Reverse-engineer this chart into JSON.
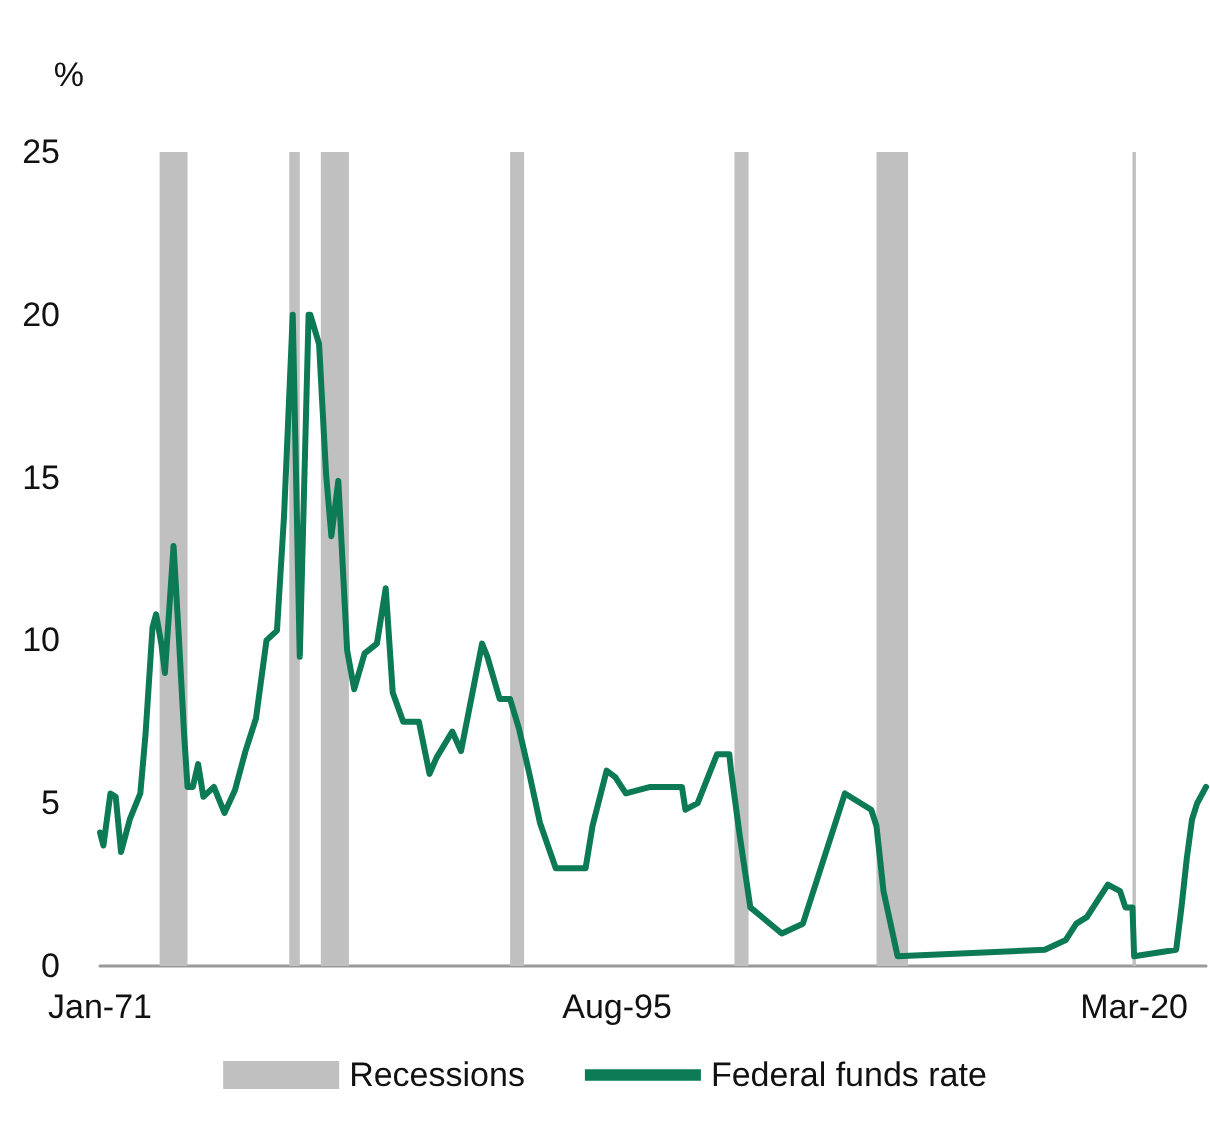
{
  "chart_data": {
    "type": "line",
    "ylabel": "%",
    "x": [
      "1971-01",
      "1971-03",
      "1971-07",
      "1971-10",
      "1972-01",
      "1972-06",
      "1972-12",
      "1973-03",
      "1973-07",
      "1973-09",
      "1973-12",
      "1974-02",
      "1974-05",
      "1974-07",
      "1974-10",
      "1975-01",
      "1975-03",
      "1975-06",
      "1975-09",
      "1975-12",
      "1976-06",
      "1976-12",
      "1977-06",
      "1977-12",
      "1978-06",
      "1978-12",
      "1979-06",
      "1979-10",
      "1980-03",
      "1980-07",
      "1980-12",
      "1981-01",
      "1981-06",
      "1981-10",
      "1982-01",
      "1982-05",
      "1982-10",
      "1983-02",
      "1983-08",
      "1984-03",
      "1984-08",
      "1984-12",
      "1985-06",
      "1986-03",
      "1986-09",
      "1987-01",
      "1987-10",
      "1988-03",
      "1989-03",
      "1989-06",
      "1990-01",
      "1990-07",
      "1990-12",
      "1991-06",
      "1991-12",
      "1992-09",
      "1994-02",
      "1994-06",
      "1995-02",
      "1995-07",
      "1996-01",
      "1997-03",
      "1998-09",
      "1998-11",
      "1999-06",
      "2000-05",
      "2000-12",
      "2001-01",
      "2001-06",
      "2001-12",
      "2003-06",
      "2004-06",
      "2006-06",
      "2007-09",
      "2007-12",
      "2008-04",
      "2008-12",
      "2015-12",
      "2016-12",
      "2017-06",
      "2017-12",
      "2018-06",
      "2018-12",
      "2019-07",
      "2019-10",
      "2020-02",
      "2020-03",
      "2022-03",
      "2022-06",
      "2022-09",
      "2022-12",
      "2023-03",
      "2023-08"
    ],
    "series": [
      {
        "name": "Federal funds rate",
        "color": "#0b7a55",
        "values": [
          4.1,
          3.7,
          5.3,
          5.2,
          3.5,
          4.5,
          5.3,
          7.1,
          10.4,
          10.8,
          9.9,
          9.0,
          11.3,
          12.9,
          10.1,
          7.1,
          5.5,
          5.5,
          6.2,
          5.2,
          5.5,
          4.7,
          5.4,
          6.6,
          7.6,
          10.0,
          10.3,
          13.8,
          20.0,
          9.5,
          20.0,
          20.0,
          19.1,
          15.1,
          13.2,
          14.9,
          9.7,
          8.5,
          9.6,
          9.9,
          11.6,
          8.4,
          7.5,
          7.5,
          5.9,
          6.4,
          7.2,
          6.6,
          9.9,
          9.5,
          8.2,
          8.2,
          7.3,
          5.9,
          4.4,
          3.0,
          3.0,
          4.3,
          6.0,
          5.8,
          5.3,
          5.5,
          5.5,
          4.8,
          5.0,
          6.5,
          6.5,
          6.0,
          4.0,
          1.8,
          1.0,
          1.3,
          5.3,
          4.8,
          4.3,
          2.3,
          0.3,
          0.5,
          0.8,
          1.3,
          1.5,
          2.0,
          2.5,
          2.3,
          1.8,
          1.8,
          0.3,
          0.5,
          1.8,
          3.3,
          4.5,
          5.0,
          5.5
        ]
      }
    ],
    "xlim": [
      "1971-01",
      "2023-08"
    ],
    "xticks": [
      {
        "value": "1971-01",
        "label": "Jan-71"
      },
      {
        "value": "1995-08",
        "label": "Aug-95"
      },
      {
        "value": "2020-03",
        "label": "Mar-20"
      }
    ],
    "ylim": [
      0,
      25
    ],
    "yticks": [
      0,
      5,
      10,
      15,
      20,
      25
    ],
    "grid": false,
    "legend": "bottom",
    "marker": "none",
    "line_style": "solid",
    "bands": [
      {
        "axis": "x",
        "from": "1973-11",
        "to": "1975-03",
        "label": "Recessions",
        "color": "#c0c0c0"
      },
      {
        "axis": "x",
        "from": "1980-01",
        "to": "1980-07",
        "color": "#c0c0c0"
      },
      {
        "axis": "x",
        "from": "1981-07",
        "to": "1982-11",
        "color": "#c0c0c0"
      },
      {
        "axis": "x",
        "from": "1990-07",
        "to": "1991-03",
        "color": "#c0c0c0"
      },
      {
        "axis": "x",
        "from": "2001-03",
        "to": "2001-11",
        "color": "#c0c0c0"
      },
      {
        "axis": "x",
        "from": "2007-12",
        "to": "2009-06",
        "color": "#c0c0c0"
      },
      {
        "axis": "x",
        "from": "2020-02",
        "to": "2020-04",
        "color": "#c0c0c0"
      }
    ]
  }
}
